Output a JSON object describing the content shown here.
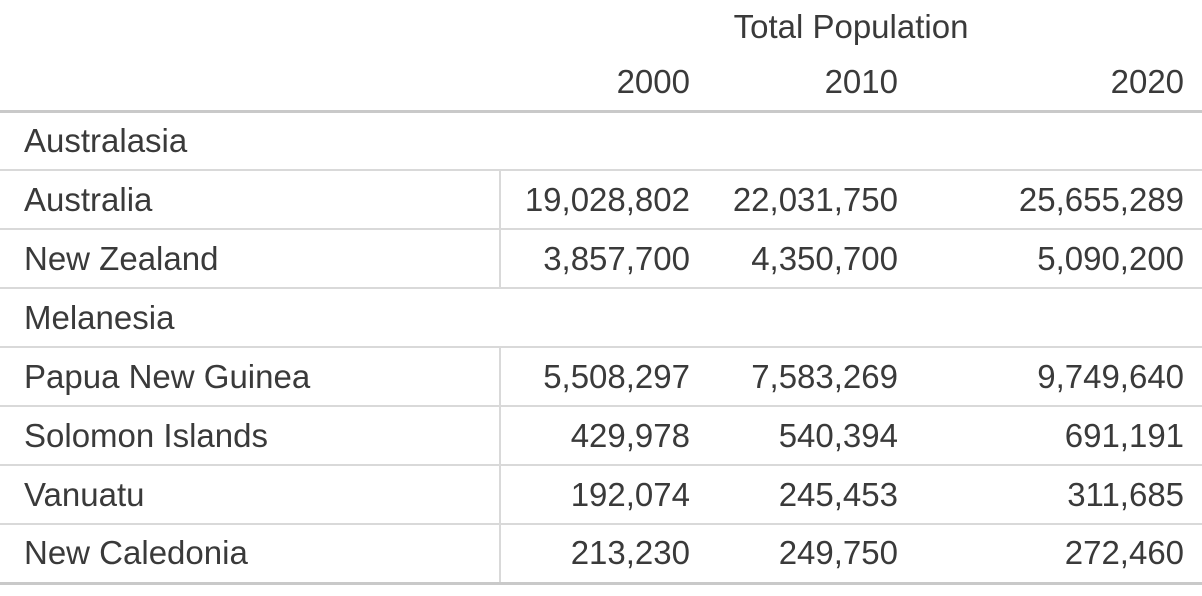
{
  "table": {
    "title": "Total Population",
    "years": [
      "2000",
      "2010",
      "2020"
    ],
    "rows": [
      {
        "type": "group",
        "label": "Australasia"
      },
      {
        "type": "data",
        "label": "Australia",
        "values": [
          "19,028,802",
          "22,031,750",
          "25,655,289"
        ]
      },
      {
        "type": "data",
        "label": "New Zealand",
        "values": [
          "3,857,700",
          "4,350,700",
          "5,090,200"
        ]
      },
      {
        "type": "group",
        "label": "Melanesia"
      },
      {
        "type": "data",
        "label": "Papua New Guinea",
        "values": [
          "5,508,297",
          "7,583,269",
          "9,749,640"
        ]
      },
      {
        "type": "data",
        "label": "Solomon Islands",
        "values": [
          "429,978",
          "540,394",
          "691,191"
        ]
      },
      {
        "type": "data",
        "label": "Vanuatu",
        "values": [
          "192,074",
          "245,453",
          "311,685"
        ]
      },
      {
        "type": "data",
        "label": "New Caledonia",
        "values": [
          "213,230",
          "249,750",
          "272,460"
        ]
      }
    ]
  },
  "colors": {
    "background": "#ffffff",
    "text": "#3a3a3a",
    "grid_line_light": "#d9d9d9",
    "grid_line_heavy": "#c9c9c9"
  },
  "chart_data": {
    "type": "table",
    "title": "Total Population",
    "columns": [
      "2000",
      "2010",
      "2020"
    ],
    "groups": [
      {
        "name": "Australasia",
        "rows": [
          {
            "label": "Australia",
            "values": [
              19028802,
              22031750,
              25655289
            ]
          },
          {
            "label": "New Zealand",
            "values": [
              3857700,
              4350700,
              5090200
            ]
          }
        ]
      },
      {
        "name": "Melanesia",
        "rows": [
          {
            "label": "Papua New Guinea",
            "values": [
              5508297,
              7583269,
              9749640
            ]
          },
          {
            "label": "Solomon Islands",
            "values": [
              429978,
              540394,
              691191
            ]
          },
          {
            "label": "Vanuatu",
            "values": [
              192074,
              245453,
              311685
            ]
          },
          {
            "label": "New Caledonia",
            "values": [
              213230,
              249750,
              272460
            ]
          }
        ]
      }
    ]
  }
}
